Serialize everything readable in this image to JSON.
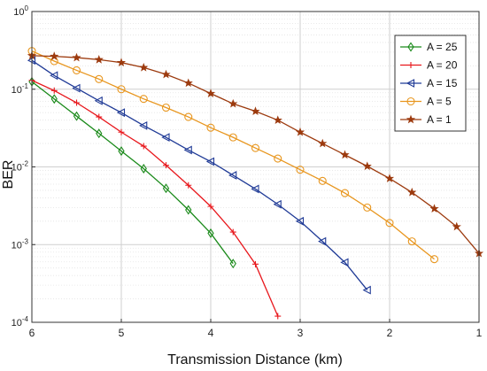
{
  "chart_data": {
    "type": "line",
    "title": "",
    "xlabel": "Transmission Distance (km)",
    "ylabel": "BER",
    "x_reversed": true,
    "xlim": [
      6,
      1
    ],
    "ylim": [
      0.0001,
      1
    ],
    "yscale": "log",
    "x_ticks": [
      6,
      5,
      4,
      3,
      2,
      1
    ],
    "y_ticks": [
      {
        "value": 1,
        "base": "10",
        "exp": "0"
      },
      {
        "value": 0.1,
        "base": "10",
        "exp": "-1"
      },
      {
        "value": 0.01,
        "base": "10",
        "exp": "-2"
      },
      {
        "value": 0.001,
        "base": "10",
        "exp": "-3"
      },
      {
        "value": 0.0001,
        "base": "10",
        "exp": "-4"
      }
    ],
    "grid": true,
    "legend_position": "top-right",
    "series": [
      {
        "name": "A = 25",
        "color": "#1a8a1a",
        "marker": "diamond",
        "x": [
          6.0,
          5.75,
          5.5,
          5.25,
          5.0,
          4.75,
          4.5,
          4.25,
          4.0,
          3.75
        ],
        "y": [
          0.125,
          0.075,
          0.045,
          0.027,
          0.016,
          0.0095,
          0.0053,
          0.0028,
          0.0014,
          0.00057
        ]
      },
      {
        "name": "A = 20",
        "color": "#e8171c",
        "marker": "plus",
        "x": [
          6.0,
          5.75,
          5.5,
          5.25,
          5.0,
          4.75,
          4.5,
          4.25,
          4.0,
          3.75,
          3.5,
          3.25
        ],
        "y": [
          0.13,
          0.096,
          0.067,
          0.044,
          0.028,
          0.0185,
          0.0105,
          0.0058,
          0.0031,
          0.00145,
          0.00056,
          0.00012
        ]
      },
      {
        "name": "A = 15",
        "color": "#1f3a96",
        "marker": "triangle-left",
        "x": [
          6.0,
          5.75,
          5.5,
          5.25,
          5.0,
          4.75,
          4.5,
          4.25,
          4.0,
          3.75,
          3.5,
          3.25,
          3.0,
          2.75,
          2.5,
          2.25
        ],
        "y": [
          0.235,
          0.15,
          0.103,
          0.071,
          0.05,
          0.034,
          0.024,
          0.0165,
          0.0117,
          0.0078,
          0.0052,
          0.0033,
          0.002,
          0.0011,
          0.00059,
          0.00026
        ]
      },
      {
        "name": "A = 5",
        "color": "#e8961e",
        "marker": "circle",
        "x": [
          6.0,
          5.75,
          5.5,
          5.25,
          5.0,
          4.75,
          4.5,
          4.25,
          4.0,
          3.75,
          3.5,
          3.25,
          3.0,
          2.75,
          2.5,
          2.25,
          2.0,
          1.75,
          1.5
        ],
        "y": [
          0.31,
          0.23,
          0.175,
          0.135,
          0.1,
          0.075,
          0.058,
          0.044,
          0.032,
          0.024,
          0.0175,
          0.0128,
          0.0092,
          0.0066,
          0.0046,
          0.003,
          0.0019,
          0.0011,
          0.00065
        ]
      },
      {
        "name": "A = 1",
        "color": "#9c3a0e",
        "marker": "star",
        "x": [
          6.0,
          5.75,
          5.5,
          5.25,
          5.0,
          4.75,
          4.5,
          4.25,
          4.0,
          3.75,
          3.5,
          3.25,
          3.0,
          2.75,
          2.5,
          2.25,
          2.0,
          1.75,
          1.5,
          1.25,
          1.0
        ],
        "y": [
          0.27,
          0.265,
          0.255,
          0.24,
          0.22,
          0.19,
          0.155,
          0.12,
          0.088,
          0.065,
          0.052,
          0.04,
          0.028,
          0.02,
          0.0143,
          0.0102,
          0.0071,
          0.0047,
          0.0029,
          0.0017,
          0.00077
        ]
      }
    ]
  }
}
